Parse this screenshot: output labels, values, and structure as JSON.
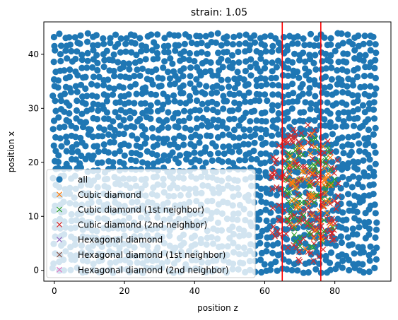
{
  "chart_data": {
    "type": "scatter",
    "title": "strain: 1.05",
    "xlabel": "position z",
    "ylabel": "position x",
    "xlim": [
      -3,
      96
    ],
    "ylim": [
      -2,
      46
    ],
    "xticks": [
      0,
      20,
      40,
      60,
      80
    ],
    "yticks": [
      0,
      10,
      20,
      30,
      40
    ],
    "grid": false,
    "legend_position": "lower-left",
    "colors": {
      "all": "#1f77b4",
      "cubic_diamond": "#ff7f0e",
      "cubic_1st": "#2ca02c",
      "cubic_2nd": "#d62728",
      "hexagonal_diamond": "#9467bd",
      "hexagonal_1st": "#8c564b",
      "hexagonal_2nd": "#e377c2",
      "vlines": "#ff0000"
    },
    "series": [
      {
        "name": "all",
        "marker": "circle",
        "color": "#1f77b4",
        "x_range": [
          0,
          92
        ],
        "y_range": [
          0,
          43.5
        ]
      },
      {
        "name": "Cubic diamond",
        "marker": "x",
        "color": "#ff7f0e",
        "x_range": [
          67,
          79
        ],
        "y_range": [
          3,
          26
        ]
      },
      {
        "name": "Cubic diamond (1st neighbor)",
        "marker": "x",
        "color": "#2ca02c",
        "x_range": [
          66,
          80
        ],
        "y_range": [
          3,
          26
        ]
      },
      {
        "name": "Cubic diamond (2nd neighbor)",
        "marker": "x",
        "color": "#d62728",
        "x_range": [
          62,
          81
        ],
        "y_range": [
          1,
          27
        ]
      },
      {
        "name": "Hexagonal diamond",
        "marker": "x",
        "color": "#9467bd"
      },
      {
        "name": "Hexagonal diamond (1st neighbor)",
        "marker": "x",
        "color": "#8c564b"
      },
      {
        "name": "Hexagonal diamond (2nd neighbor)",
        "marker": "x",
        "color": "#e377c2"
      }
    ],
    "vlines": [
      65,
      76
    ]
  }
}
